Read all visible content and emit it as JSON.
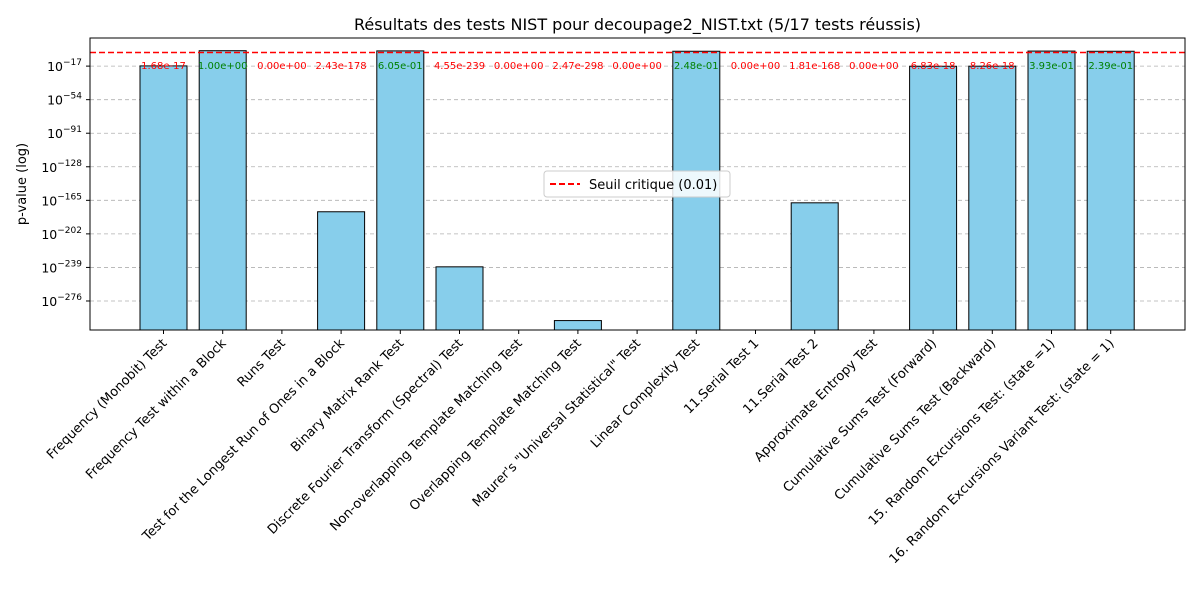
{
  "chart_data": {
    "type": "bar",
    "title": "Résultats des tests NIST pour decoupage2_NIST.txt (5/17 tests réussis)",
    "xlabel": "",
    "ylabel": "p-value (log)",
    "y_scale": "log",
    "ylim_exponent": [
      -308,
      14
    ],
    "y_tick_exponents": [
      -17,
      -54,
      -91,
      -128,
      -165,
      -202,
      -239,
      -276
    ],
    "grid": "y-dashed",
    "bar_color": "#87CEEB",
    "bar_edge_color": "#000000",
    "pass_label_color": "#008000",
    "fail_label_color": "#ff0000",
    "categories": [
      "Frequency (Monobit) Test",
      "Frequency Test within a Block",
      "Runs Test",
      "Test for the Longest Run of Ones in a Block",
      "Binary Matrix Rank Test",
      "Discrete Fourier Transform (Spectral) Test",
      "Non-overlapping Template Matching Test",
      "Overlapping Template Matching Test",
      "Maurer's \"Universal Statistical\" Test",
      "Linear Complexity Test",
      "11.Serial Test 1",
      "11.Serial Test 2",
      "Approximate Entropy Test",
      "Cumulative Sums Test (Forward)",
      "Cumulative Sums Test (Backward)",
      "15. Random Excursions Test: (state =1)",
      "16. Random Excursions Variant Test: (state = 1)"
    ],
    "values": [
      1.68e-17,
      1.0,
      0,
      2.43e-178,
      0.605,
      4.55e-239,
      0,
      2.47e-298,
      0,
      0.248,
      0,
      1.81e-168,
      0,
      6.83e-18,
      8.26e-18,
      0.393,
      0.239
    ],
    "value_labels": [
      "1.68e-17",
      "1.00e+00",
      "0.00e+00",
      "2.43e-178",
      "6.05e-01",
      "4.55e-239",
      "0.00e+00",
      "2.47e-298",
      "0.00e+00",
      "2.48e-01",
      "0.00e+00",
      "1.81e-168",
      "0.00e+00",
      "6.83e-18",
      "8.26e-18",
      "3.93e-01",
      "2.39e-01"
    ],
    "passed": [
      false,
      true,
      false,
      false,
      true,
      false,
      false,
      false,
      false,
      true,
      false,
      false,
      false,
      false,
      false,
      true,
      true
    ],
    "threshold": {
      "value": 0.01,
      "label": "Seuil critique (0.01)",
      "color": "#ff0000"
    },
    "legend_position": "center"
  }
}
